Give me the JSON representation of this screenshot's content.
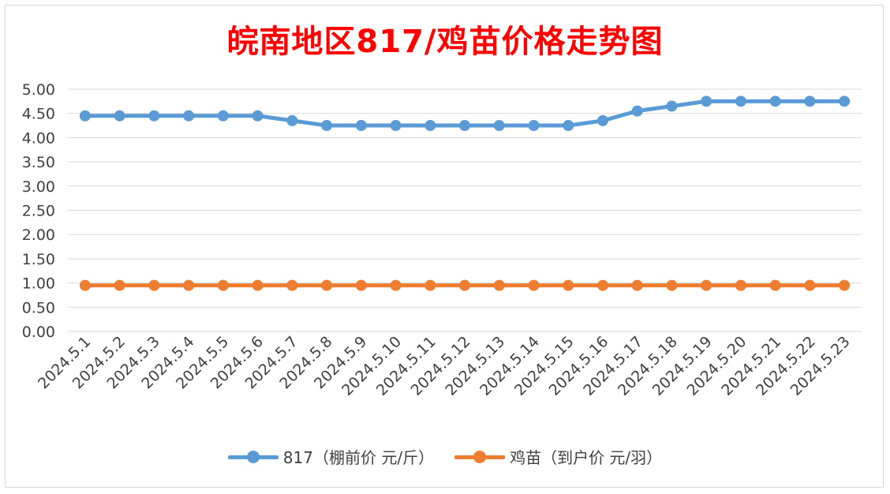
{
  "chart_data": {
    "type": "line",
    "title": "皖南地区817/鸡苗价格走势图",
    "categories": [
      "2024.5.1",
      "2024.5.2",
      "2024.5.3",
      "2024.5.4",
      "2024.5.5",
      "2024.5.6",
      "2024.5.7",
      "2024.5.8",
      "2024.5.9",
      "2024.5.10",
      "2024.5.11",
      "2024.5.12",
      "2024.5.13",
      "2024.5.14",
      "2024.5.15",
      "2024.5.16",
      "2024.5.17",
      "2024.5.18",
      "2024.5.19",
      "2024.5.20",
      "2024.5.21",
      "2024.5.22",
      "2024.5.23"
    ],
    "series": [
      {
        "name": "817（棚前价 元/斤）",
        "color": "#5b9bd5",
        "values": [
          4.45,
          4.45,
          4.45,
          4.45,
          4.45,
          4.45,
          4.35,
          4.25,
          4.25,
          4.25,
          4.25,
          4.25,
          4.25,
          4.25,
          4.25,
          4.35,
          4.55,
          4.65,
          4.75,
          4.75,
          4.75,
          4.75,
          4.75
        ]
      },
      {
        "name": "鸡苗（到户价 元/羽）",
        "color": "#ed7d31",
        "values": [
          0.95,
          0.95,
          0.95,
          0.95,
          0.95,
          0.95,
          0.95,
          0.95,
          0.95,
          0.95,
          0.95,
          0.95,
          0.95,
          0.95,
          0.95,
          0.95,
          0.95,
          0.95,
          0.95,
          0.95,
          0.95,
          0.95,
          0.95
        ]
      }
    ],
    "y_ticks": [
      "0.00",
      "0.50",
      "1.00",
      "1.50",
      "2.00",
      "2.50",
      "3.00",
      "3.50",
      "4.00",
      "4.50",
      "5.00"
    ],
    "ylim": [
      0,
      5
    ],
    "xlabel": "",
    "ylabel": "",
    "grid": true,
    "legend_position": "bottom"
  }
}
